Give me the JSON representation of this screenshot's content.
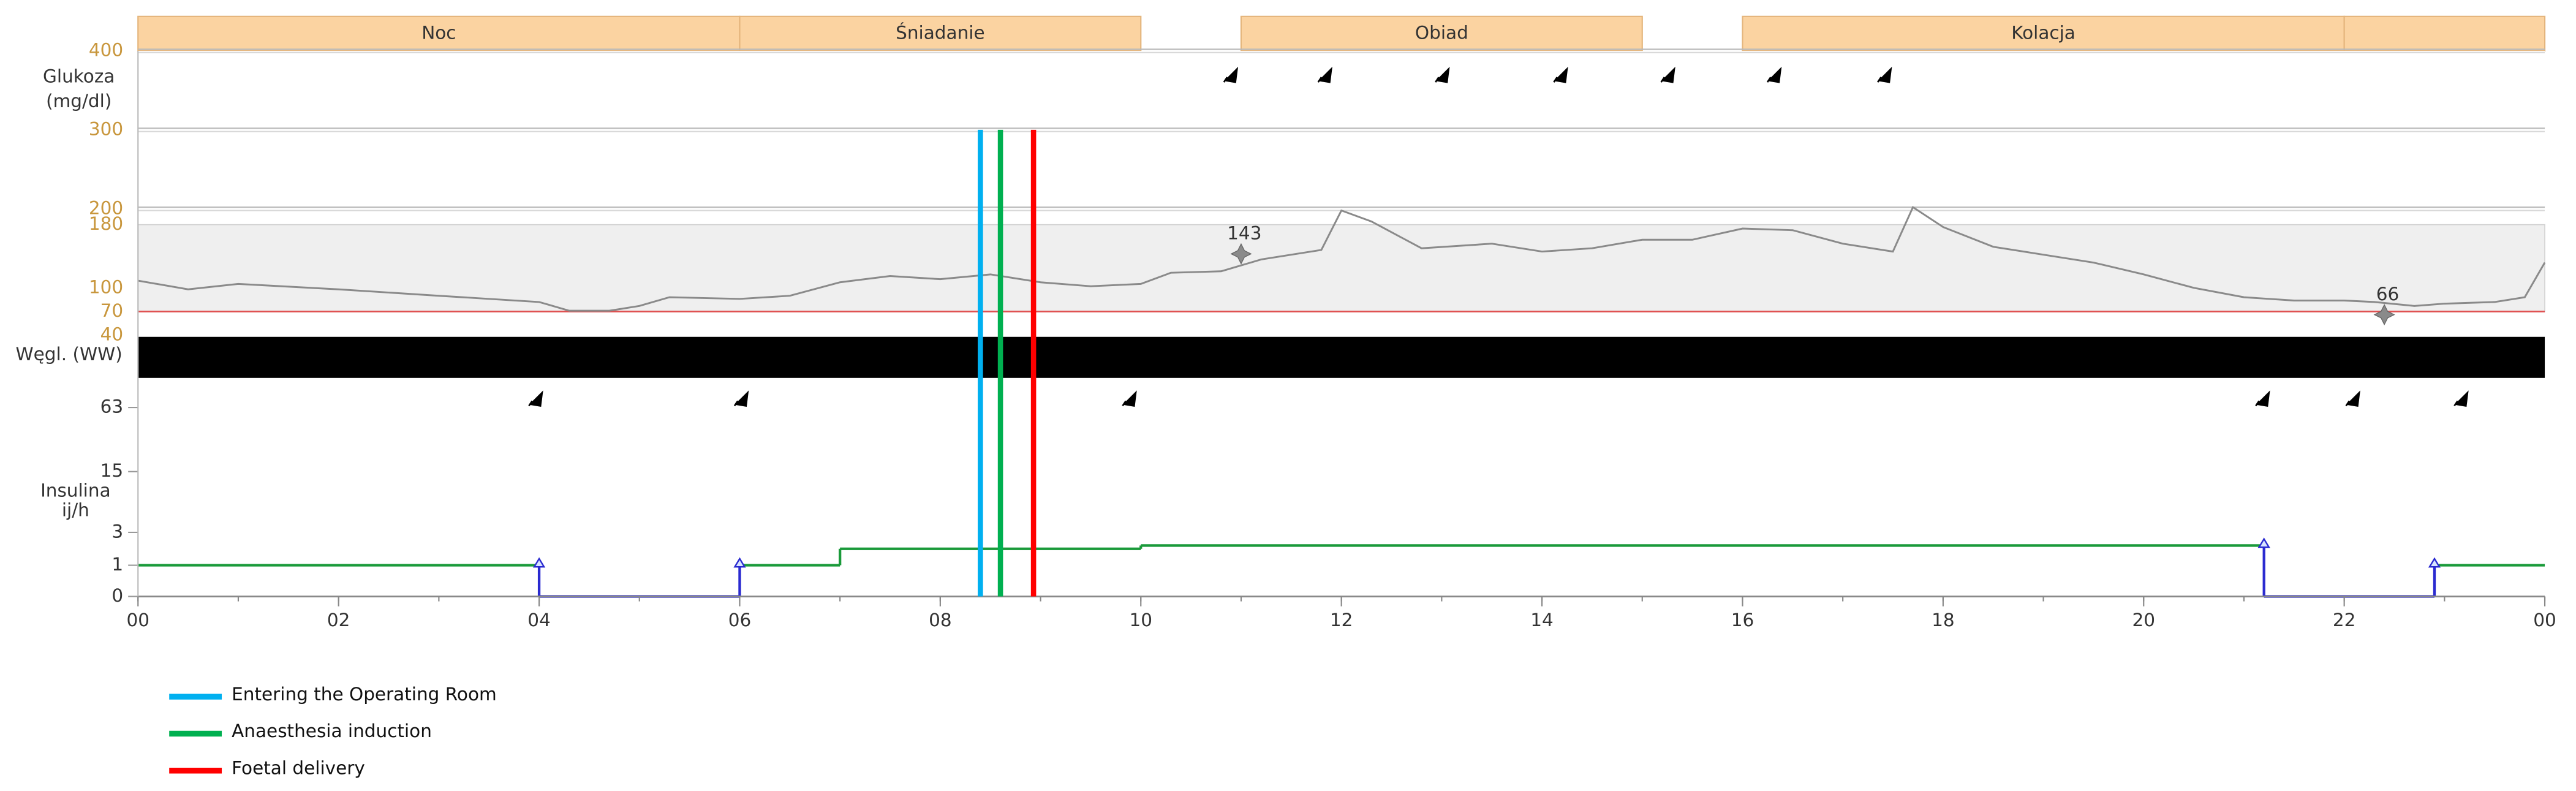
{
  "x_axis": {
    "xlim": [
      0,
      24
    ],
    "xticks": [
      {
        "value": 0,
        "label": "00"
      },
      {
        "value": 2,
        "label": "02"
      },
      {
        "value": 4,
        "label": "04"
      },
      {
        "value": 6,
        "label": "06"
      },
      {
        "value": 8,
        "label": "08"
      },
      10,
      12,
      14,
      16,
      18,
      20,
      22,
      {
        "value": 24,
        "label": "00"
      }
    ]
  },
  "meal_periods": [
    {
      "name": "Noc",
      "start": 0,
      "end": 6
    },
    {
      "name": "Śniadanie",
      "start": 6,
      "end": 10
    },
    {
      "name": "Obiad",
      "start": 11,
      "end": 15
    },
    {
      "name": "Kolacja",
      "start": 16,
      "end": 22
    },
    {
      "name": null,
      "start": 22,
      "end": 24
    }
  ],
  "events": [
    {
      "name": "Entering the Operating Room",
      "color": "#00b0f0",
      "x": 8.4
    },
    {
      "name": "Anaesthesia induction",
      "color": "#00b050",
      "x": 8.6
    },
    {
      "name": "Foetal delivery",
      "color": "#ff0000",
      "x": 8.93
    }
  ],
  "chart_data": [
    {
      "type": "line",
      "ylabel": [
        "Glukoza",
        "(mg/dl)"
      ],
      "ylim": [
        40,
        400
      ],
      "yticks": [
        40,
        70,
        100,
        180,
        200,
        300,
        400
      ],
      "target_range": [
        70,
        180
      ],
      "color": "#8a8a8a",
      "x": [
        0,
        0.5,
        1,
        2,
        3,
        4,
        4.3,
        4.7,
        5,
        5.3,
        6,
        6.5,
        7,
        7.5,
        8,
        8.5,
        9,
        9.5,
        10,
        10.3,
        10.8,
        11.2,
        11.8,
        12,
        12.3,
        12.8,
        13.5,
        14,
        14.5,
        15,
        15.5,
        16,
        16.5,
        17,
        17.5,
        17.7,
        18,
        18.5,
        19,
        19.5,
        20,
        20.5,
        21,
        21.5,
        22,
        22.3,
        22.7,
        23,
        23.5,
        23.8,
        24
      ],
      "values": [
        109,
        98,
        105,
        98,
        90,
        82,
        71,
        71,
        77,
        88,
        86,
        90,
        107,
        115,
        111,
        117,
        107,
        102,
        105,
        119,
        121,
        136,
        148,
        198,
        184,
        150,
        156,
        146,
        150,
        161,
        161,
        175,
        173,
        156,
        146,
        202,
        177,
        152,
        142,
        132,
        117,
        100,
        88,
        84,
        84,
        82,
        77,
        80,
        82,
        88,
        132
      ],
      "annotations": [
        {
          "x": 11.0,
          "value": 143
        },
        {
          "x": 22.4,
          "value": 66
        }
      ],
      "meal_markers": [
        10.91,
        11.85,
        13.02,
        14.2,
        15.27,
        16.33,
        17.43
      ]
    },
    {
      "type": "band",
      "ylabel": "Węgl. (WW)",
      "color": "#000000"
    },
    {
      "type": "step",
      "ylabel": [
        "Insulina",
        "ij/h"
      ],
      "ylim": [
        0,
        63
      ],
      "yticks": [
        0,
        1,
        3,
        15,
        63
      ],
      "color": "#1a9a3a",
      "suspend_color": "#2a2ad0",
      "x": [
        0,
        4,
        6,
        7,
        10,
        21.2,
        22.9
      ],
      "values": [
        1,
        0,
        1,
        2,
        2.2,
        0,
        1
      ],
      "bolus_x": [
        4,
        6,
        21.2,
        22.9
      ],
      "meal_markers": [
        3.98,
        6.03,
        9.9,
        21.2,
        22.1,
        23.18
      ]
    }
  ]
}
